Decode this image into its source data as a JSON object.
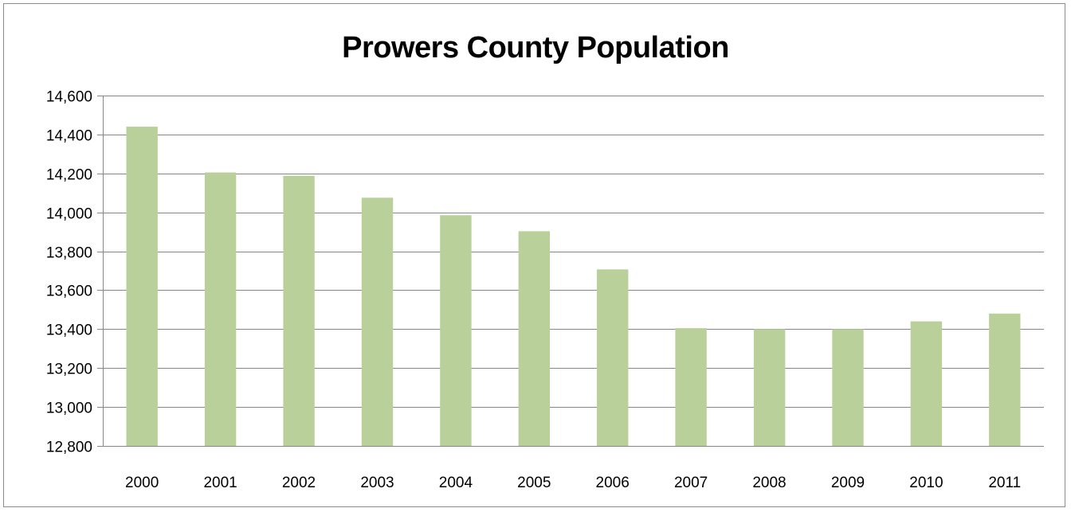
{
  "chart_data": {
    "type": "bar",
    "title": "Prowers County Population",
    "xlabel": "",
    "ylabel": "",
    "categories": [
      "2000",
      "2001",
      "2002",
      "2003",
      "2004",
      "2005",
      "2006",
      "2007",
      "2008",
      "2009",
      "2010",
      "2011"
    ],
    "values": [
      14440,
      14205,
      14188,
      14075,
      13985,
      13903,
      13707,
      13405,
      13400,
      13400,
      13440,
      13480
    ],
    "ylim": [
      12800,
      14600
    ],
    "yticks": [
      12800,
      13000,
      13200,
      13400,
      13600,
      13800,
      14000,
      14200,
      14400,
      14600
    ],
    "ytick_labels": [
      "12,800",
      "13,000",
      "13,200",
      "13,400",
      "13,600",
      "13,800",
      "14,000",
      "14,200",
      "14,400",
      "14,600"
    ],
    "grid": true,
    "legend": "none",
    "colors": {
      "bar": "#b9d09a",
      "grid": "#868686",
      "axis": "#868686",
      "frame": "#8c8c8c"
    }
  }
}
